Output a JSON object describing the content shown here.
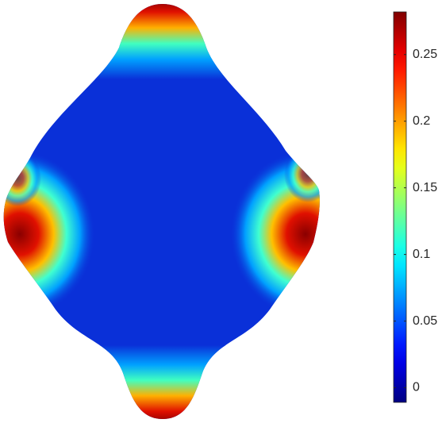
{
  "chart_data": {
    "type": "surface",
    "colormap": "jet",
    "colorbar": {
      "clim": [
        -0.011,
        0.282
      ],
      "ticks": [
        0,
        0.05,
        0.1,
        0.15,
        0.2,
        0.25
      ]
    }
  }
}
